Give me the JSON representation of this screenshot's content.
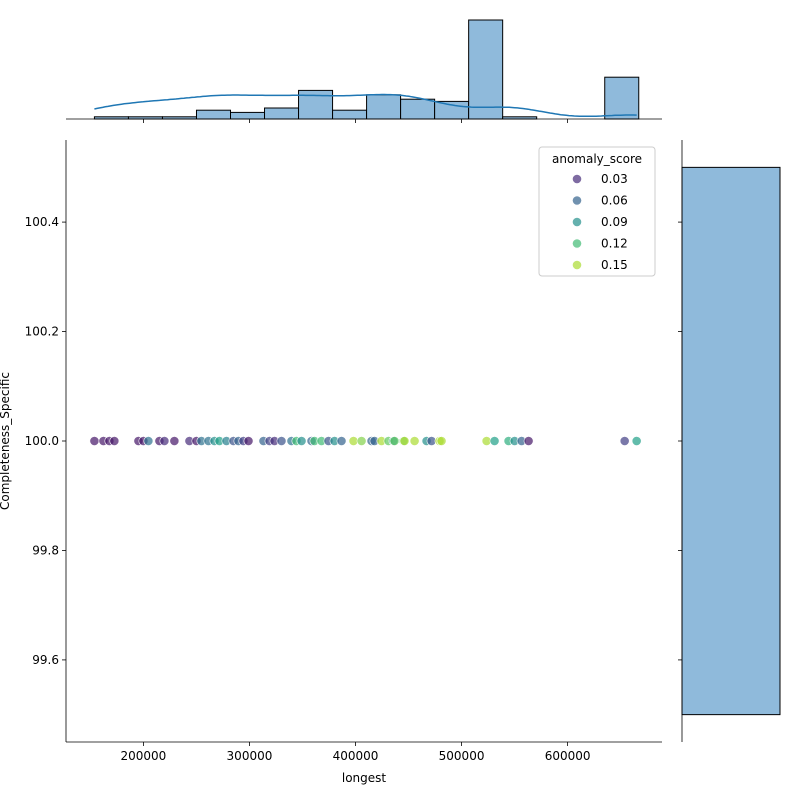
{
  "chart_data": {
    "type": "scatter",
    "subtype": "jointplot",
    "xlabel": "longest",
    "ylabel": "Completeness_Specific",
    "xlim": [
      127000,
      689000
    ],
    "ylim": [
      99.45,
      100.55
    ],
    "x_ticks": [
      200000,
      300000,
      400000,
      500000,
      600000
    ],
    "x_tick_labels": [
      "200000",
      "300000",
      "400000",
      "500000",
      "600000"
    ],
    "y_ticks": [
      99.6,
      99.8,
      100.0,
      100.2,
      100.4
    ],
    "y_tick_labels": [
      "99.6",
      "99.8",
      "100.0",
      "100.2",
      "100.4"
    ],
    "grid": false,
    "hue": "anomaly_score",
    "colormap": "viridis",
    "legend": {
      "title": "anomaly_score",
      "placement": "top-right",
      "entries": [
        {
          "label": "0.03",
          "value": 0.03
        },
        {
          "label": "0.06",
          "value": 0.06
        },
        {
          "label": "0.09",
          "value": 0.09
        },
        {
          "label": "0.12",
          "value": 0.12
        },
        {
          "label": "0.15",
          "value": 0.15
        }
      ]
    },
    "points": [
      {
        "longest": 153800,
        "y": 100.0,
        "anomaly_score": 0.02
      },
      {
        "longest": 162300,
        "y": 100.0,
        "anomaly_score": 0.02
      },
      {
        "longest": 167900,
        "y": 100.0,
        "anomaly_score": 0.02
      },
      {
        "longest": 172600,
        "y": 100.0,
        "anomaly_score": 0.02
      },
      {
        "longest": 195300,
        "y": 100.0,
        "anomaly_score": 0.02
      },
      {
        "longest": 200000,
        "y": 100.0,
        "anomaly_score": 0.02
      },
      {
        "longest": 204700,
        "y": 100.0,
        "anomaly_score": 0.07
      },
      {
        "longest": 215100,
        "y": 100.0,
        "anomaly_score": 0.02
      },
      {
        "longest": 219800,
        "y": 100.0,
        "anomaly_score": 0.03
      },
      {
        "longest": 229200,
        "y": 100.0,
        "anomaly_score": 0.02
      },
      {
        "longest": 243400,
        "y": 100.0,
        "anomaly_score": 0.03
      },
      {
        "longest": 250000,
        "y": 100.0,
        "anomaly_score": 0.02
      },
      {
        "longest": 254700,
        "y": 100.0,
        "anomaly_score": 0.07
      },
      {
        "longest": 261300,
        "y": 100.0,
        "anomaly_score": 0.07
      },
      {
        "longest": 267000,
        "y": 100.0,
        "anomaly_score": 0.09
      },
      {
        "longest": 271700,
        "y": 100.0,
        "anomaly_score": 0.1
      },
      {
        "longest": 278300,
        "y": 100.0,
        "anomaly_score": 0.08
      },
      {
        "longest": 284900,
        "y": 100.0,
        "anomaly_score": 0.05
      },
      {
        "longest": 289600,
        "y": 100.0,
        "anomaly_score": 0.06
      },
      {
        "longest": 294300,
        "y": 100.0,
        "anomaly_score": 0.04
      },
      {
        "longest": 299100,
        "y": 100.0,
        "anomaly_score": 0.02
      },
      {
        "longest": 313200,
        "y": 100.0,
        "anomaly_score": 0.06
      },
      {
        "longest": 318900,
        "y": 100.0,
        "anomaly_score": 0.04
      },
      {
        "longest": 323600,
        "y": 100.0,
        "anomaly_score": 0.03
      },
      {
        "longest": 330200,
        "y": 100.0,
        "anomaly_score": 0.05
      },
      {
        "longest": 339600,
        "y": 100.0,
        "anomaly_score": 0.07
      },
      {
        "longest": 344300,
        "y": 100.0,
        "anomaly_score": 0.12
      },
      {
        "longest": 349100,
        "y": 100.0,
        "anomaly_score": 0.09
      },
      {
        "longest": 358500,
        "y": 100.0,
        "anomaly_score": 0.06
      },
      {
        "longest": 361300,
        "y": 100.0,
        "anomaly_score": 0.12
      },
      {
        "longest": 367900,
        "y": 100.0,
        "anomaly_score": 0.12
      },
      {
        "longest": 374500,
        "y": 100.0,
        "anomaly_score": 0.05
      },
      {
        "longest": 380200,
        "y": 100.0,
        "anomaly_score": 0.09
      },
      {
        "longest": 386800,
        "y": 100.0,
        "anomaly_score": 0.06
      },
      {
        "longest": 398100,
        "y": 100.0,
        "anomaly_score": 0.15
      },
      {
        "longest": 405700,
        "y": 100.0,
        "anomaly_score": 0.14
      },
      {
        "longest": 415100,
        "y": 100.0,
        "anomaly_score": 0.06
      },
      {
        "longest": 417900,
        "y": 100.0,
        "anomaly_score": 0.06
      },
      {
        "longest": 424500,
        "y": 100.0,
        "anomaly_score": 0.15
      },
      {
        "longest": 431100,
        "y": 100.0,
        "anomaly_score": 0.13
      },
      {
        "longest": 435800,
        "y": 100.0,
        "anomaly_score": 0.09
      },
      {
        "longest": 436800,
        "y": 100.0,
        "anomaly_score": 0.13
      },
      {
        "longest": 445300,
        "y": 100.0,
        "anomaly_score": 0.13
      },
      {
        "longest": 446200,
        "y": 100.0,
        "anomaly_score": 0.15
      },
      {
        "longest": 455700,
        "y": 100.0,
        "anomaly_score": 0.15
      },
      {
        "longest": 467000,
        "y": 100.0,
        "anomaly_score": 0.09
      },
      {
        "longest": 471700,
        "y": 100.0,
        "anomaly_score": 0.05
      },
      {
        "longest": 479200,
        "y": 100.0,
        "anomaly_score": 0.15
      },
      {
        "longest": 481100,
        "y": 100.0,
        "anomaly_score": 0.15
      },
      {
        "longest": 523600,
        "y": 100.0,
        "anomaly_score": 0.15
      },
      {
        "longest": 531100,
        "y": 100.0,
        "anomaly_score": 0.1
      },
      {
        "longest": 544300,
        "y": 100.0,
        "anomaly_score": 0.11
      },
      {
        "longest": 550000,
        "y": 100.0,
        "anomaly_score": 0.09
      },
      {
        "longest": 556600,
        "y": 100.0,
        "anomaly_score": 0.06
      },
      {
        "longest": 563200,
        "y": 100.0,
        "anomaly_score": 0.02
      },
      {
        "longest": 653800,
        "y": 100.0,
        "anomaly_score": 0.04
      },
      {
        "longest": 665100,
        "y": 100.0,
        "anomaly_score": 0.1
      }
    ],
    "marginal_x_histogram": {
      "bin_start": 153800,
      "bin_width": 32080,
      "counts": [
        1,
        1,
        1,
        4,
        3,
        5,
        13,
        4,
        11,
        9,
        8,
        45,
        1,
        0,
        0,
        19
      ],
      "kde": true,
      "color": "#8fbadb",
      "kde_color": "#1f77b4"
    },
    "marginal_y_histogram": {
      "bins": [
        [
          99.5,
          100.5
        ]
      ],
      "counts": [
        1
      ],
      "color": "#8fbadb"
    }
  }
}
